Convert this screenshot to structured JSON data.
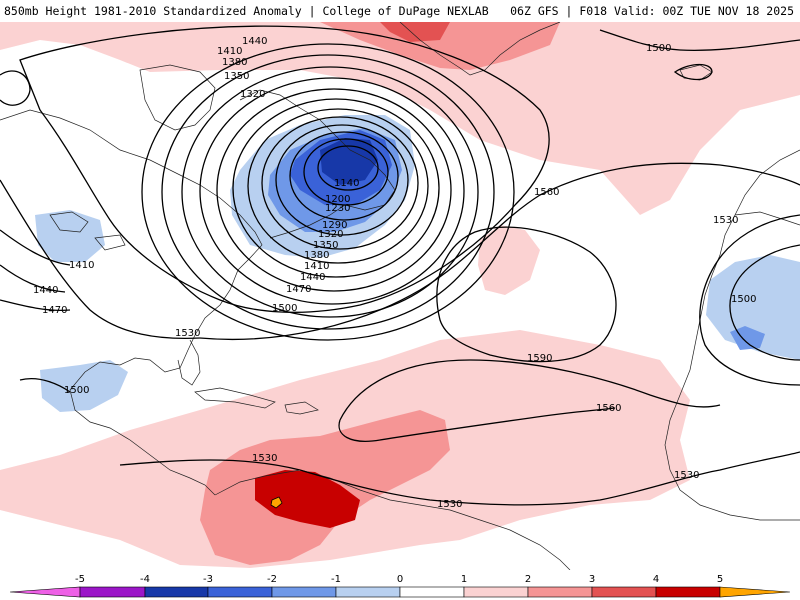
{
  "header": {
    "left_title": "850mb Height 1981-2010 Standardized Anomaly | College of DuPage NEXLAB",
    "right_title": "06Z GFS | F018 Valid: 00Z TUE NOV 18 2025"
  },
  "contour_labels": [
    {
      "id": "1440-nw",
      "text": "1440"
    },
    {
      "id": "1410-nw",
      "text": "1410"
    },
    {
      "id": "1380-nw",
      "text": "1380"
    },
    {
      "id": "1350-nw",
      "text": "1350"
    },
    {
      "id": "1320-nw",
      "text": "1320"
    },
    {
      "id": "1140",
      "text": "1140"
    },
    {
      "id": "1200",
      "text": "1200"
    },
    {
      "id": "1230",
      "text": "1230"
    },
    {
      "id": "1290",
      "text": "1290"
    },
    {
      "id": "1320-c",
      "text": "1320"
    },
    {
      "id": "1350-c",
      "text": "1350"
    },
    {
      "id": "1380-c",
      "text": "1380"
    },
    {
      "id": "1410-c",
      "text": "1410"
    },
    {
      "id": "1440-c",
      "text": "1440"
    },
    {
      "id": "1470-c",
      "text": "1470"
    },
    {
      "id": "1500-c",
      "text": "1500"
    },
    {
      "id": "1560-c",
      "text": "1560"
    },
    {
      "id": "1500-ne",
      "text": "1500"
    },
    {
      "id": "1530-e",
      "text": "1530"
    },
    {
      "id": "1500-e",
      "text": "1500"
    },
    {
      "id": "1410-w",
      "text": "1410"
    },
    {
      "id": "1440-w",
      "text": "1440"
    },
    {
      "id": "1470-w",
      "text": "1470"
    },
    {
      "id": "1530-sw",
      "text": "1530"
    },
    {
      "id": "1500-sw",
      "text": "1500"
    },
    {
      "id": "1590",
      "text": "1590"
    },
    {
      "id": "1560-s",
      "text": "1560"
    },
    {
      "id": "1530-carib",
      "text": "1530"
    },
    {
      "id": "1530-s",
      "text": "1530"
    },
    {
      "id": "1530-se",
      "text": "1530"
    }
  ],
  "colorbar": {
    "ticks": [
      "-5",
      "-4",
      "-3",
      "-2",
      "-1",
      "0",
      "1",
      "2",
      "3",
      "4",
      "5"
    ],
    "colors": [
      "#ee60e6",
      "#9b16c8",
      "#1738a8",
      "#3a62d8",
      "#6f98e8",
      "#b8d0f0",
      "#ffffff",
      "#fbd2d2",
      "#f59595",
      "#e35252",
      "#c80000",
      "#ffa500"
    ]
  }
}
